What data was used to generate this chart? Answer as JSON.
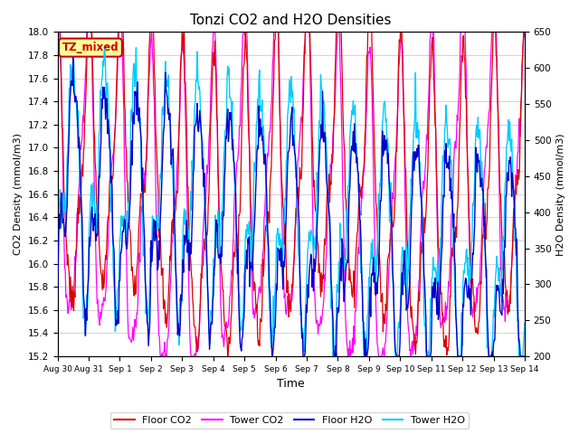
{
  "title": "Tonzi CO2 and H2O Densities",
  "xlabel": "Time",
  "ylabel_left": "CO2 Density (mmol/m3)",
  "ylabel_right": "H2O Density (mmol/m3)",
  "ylim_left": [
    15.2,
    18.0
  ],
  "ylim_right": [
    200,
    650
  ],
  "yticks_left": [
    15.2,
    15.4,
    15.6,
    15.8,
    16.0,
    16.2,
    16.4,
    16.6,
    16.8,
    17.0,
    17.2,
    17.4,
    17.6,
    17.8,
    18.0
  ],
  "yticks_right": [
    200,
    250,
    300,
    350,
    400,
    450,
    500,
    550,
    600,
    650
  ],
  "xtick_labels": [
    "Aug 30",
    "Aug 31",
    "Sep 1",
    "Sep 2",
    "Sep 3",
    "Sep 4",
    "Sep 5",
    "Sep 6",
    "Sep 7",
    "Sep 8",
    "Sep 9",
    "Sep 10",
    "Sep 11",
    "Sep 12",
    "Sep 13",
    "Sep 14"
  ],
  "annotation_text": "TZ_mixed",
  "annotation_color": "#cc0000",
  "annotation_bg": "#ffff99",
  "annotation_border": "#cc0000",
  "colors": {
    "floor_co2": "#dd0000",
    "tower_co2": "#ff00ff",
    "floor_h2o": "#0000cc",
    "tower_h2o": "#00ccff"
  },
  "legend_labels": [
    "Floor CO2",
    "Tower CO2",
    "Floor H2O",
    "Tower H2O"
  ],
  "background_color": "#ffffff",
  "grid_color": "#cccccc"
}
